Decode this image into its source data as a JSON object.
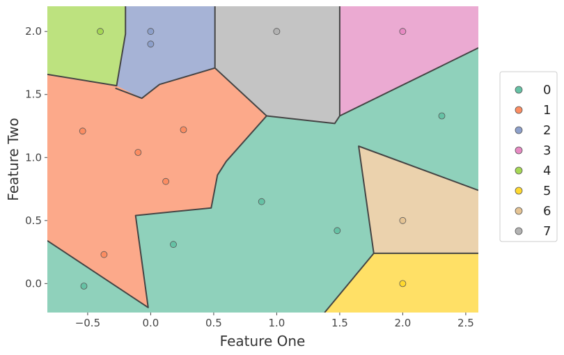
{
  "chart_data": {
    "type": "scatter",
    "subtype": "decision-boundary",
    "title": "",
    "xlabel": "Feature One",
    "ylabel": "Feature Two",
    "xlim": [
      -0.82,
      2.6
    ],
    "ylim": [
      -0.23,
      2.2
    ],
    "x_ticks": [
      -0.5,
      0.0,
      0.5,
      1.0,
      1.5,
      2.0,
      2.5
    ],
    "x_tick_labels": [
      "−0.5",
      "0.0",
      "0.5",
      "1.0",
      "1.5",
      "2.0",
      "2.5"
    ],
    "y_ticks": [
      0.0,
      0.5,
      1.0,
      1.5,
      2.0
    ],
    "y_tick_labels": [
      "0.0",
      "0.5",
      "1.0",
      "1.5",
      "2.0"
    ],
    "grid": false,
    "legend_position": "right",
    "class_colors": {
      "0": "#66c2a5",
      "1": "#fc8d62",
      "2": "#8da0cb",
      "3": "#e78ac3",
      "4": "#a6d854",
      "5": "#ffd92f",
      "6": "#e5c494",
      "7": "#b3b3b3"
    },
    "region_colors": {
      "0": "#8fd1bb",
      "1": "#fca98a",
      "2": "#a6b3d6",
      "3": "#ebaad2",
      "4": "#bde27f",
      "5": "#ffe066",
      "6": "#ebd2ad",
      "7": "#c4c4c4"
    },
    "legend": [
      "0",
      "1",
      "2",
      "3",
      "4",
      "5",
      "6",
      "7"
    ],
    "points": [
      {
        "x": -0.53,
        "y": -0.02,
        "class": "0"
      },
      {
        "x": 0.18,
        "y": 0.31,
        "class": "0"
      },
      {
        "x": 0.88,
        "y": 0.65,
        "class": "0"
      },
      {
        "x": 1.48,
        "y": 0.42,
        "class": "0"
      },
      {
        "x": 2.31,
        "y": 1.33,
        "class": "0"
      },
      {
        "x": -0.54,
        "y": 1.21,
        "class": "1"
      },
      {
        "x": -0.1,
        "y": 1.04,
        "class": "1"
      },
      {
        "x": 0.26,
        "y": 1.22,
        "class": "1"
      },
      {
        "x": 0.12,
        "y": 0.81,
        "class": "1"
      },
      {
        "x": -0.37,
        "y": 0.23,
        "class": "1"
      },
      {
        "x": 0.0,
        "y": 2.0,
        "class": "2"
      },
      {
        "x": 0.0,
        "y": 1.9,
        "class": "2"
      },
      {
        "x": 2.0,
        "y": 2.0,
        "class": "3"
      },
      {
        "x": -0.4,
        "y": 2.0,
        "class": "4"
      },
      {
        "x": 2.0,
        "y": 0.0,
        "class": "5"
      },
      {
        "x": 2.0,
        "y": 0.5,
        "class": "6"
      },
      {
        "x": 1.0,
        "y": 2.0,
        "class": "7"
      }
    ],
    "regions": [
      {
        "class": "0",
        "polygon": [
          [
            -0.82,
            -0.23
          ],
          [
            2.6,
            -0.23
          ],
          [
            2.6,
            2.2
          ],
          [
            -0.82,
            2.2
          ]
        ]
      },
      {
        "class": "4",
        "polygon": [
          [
            -0.82,
            2.2
          ],
          [
            -0.2,
            2.2
          ],
          [
            -0.2,
            1.98
          ],
          [
            -0.27,
            1.57
          ],
          [
            -0.82,
            1.66
          ]
        ]
      },
      {
        "class": "2",
        "polygon": [
          [
            -0.2,
            2.2
          ],
          [
            0.51,
            2.2
          ],
          [
            0.51,
            1.71
          ],
          [
            0.07,
            1.58
          ],
          [
            -0.07,
            1.47
          ],
          [
            -0.28,
            1.54
          ],
          [
            -0.2,
            1.98
          ]
        ]
      },
      {
        "class": "7",
        "polygon": [
          [
            0.51,
            2.2
          ],
          [
            1.5,
            2.2
          ],
          [
            1.5,
            1.33
          ],
          [
            1.46,
            1.27
          ],
          [
            0.92,
            1.33
          ],
          [
            0.51,
            1.71
          ]
        ]
      },
      {
        "class": "3",
        "polygon": [
          [
            1.5,
            2.2
          ],
          [
            2.6,
            2.2
          ],
          [
            2.6,
            1.87
          ],
          [
            1.5,
            1.33
          ]
        ]
      },
      {
        "class": "1",
        "polygon": [
          [
            -0.82,
            1.66
          ],
          [
            -0.27,
            1.57
          ],
          [
            -0.07,
            1.47
          ],
          [
            0.07,
            1.58
          ],
          [
            0.51,
            1.71
          ],
          [
            0.92,
            1.33
          ],
          [
            0.6,
            0.97
          ],
          [
            0.53,
            0.86
          ],
          [
            0.48,
            0.6
          ],
          [
            -0.12,
            0.54
          ],
          [
            -0.02,
            -0.19
          ],
          [
            -0.82,
            0.34
          ]
        ]
      },
      {
        "class": "6",
        "polygon": [
          [
            1.65,
            1.09
          ],
          [
            2.6,
            0.74
          ],
          [
            2.6,
            0.24
          ],
          [
            1.77,
            0.24
          ]
        ]
      },
      {
        "class": "5",
        "polygon": [
          [
            1.77,
            0.24
          ],
          [
            2.6,
            0.24
          ],
          [
            2.6,
            -0.23
          ],
          [
            1.38,
            -0.23
          ]
        ]
      }
    ],
    "boundaries": [
      [
        [
          -0.2,
          2.2
        ],
        [
          -0.2,
          1.98
        ],
        [
          -0.27,
          1.57
        ],
        [
          -0.82,
          1.66
        ]
      ],
      [
        [
          0.51,
          2.2
        ],
        [
          0.51,
          1.71
        ],
        [
          0.92,
          1.33
        ],
        [
          0.6,
          0.97
        ],
        [
          0.53,
          0.86
        ],
        [
          0.48,
          0.6
        ],
        [
          -0.12,
          0.54
        ],
        [
          -0.02,
          -0.19
        ],
        [
          -0.82,
          0.34
        ]
      ],
      [
        [
          -0.28,
          1.55
        ],
        [
          -0.07,
          1.47
        ],
        [
          0.07,
          1.58
        ],
        [
          0.51,
          1.71
        ]
      ],
      [
        [
          0.92,
          1.33
        ],
        [
          1.46,
          1.27
        ],
        [
          1.5,
          1.33
        ],
        [
          1.5,
          2.2
        ]
      ],
      [
        [
          1.5,
          1.33
        ],
        [
          2.6,
          1.87
        ]
      ],
      [
        [
          2.6,
          0.74
        ],
        [
          1.65,
          1.09
        ],
        [
          1.77,
          0.24
        ],
        [
          2.6,
          0.24
        ]
      ],
      [
        [
          1.77,
          0.24
        ],
        [
          1.38,
          -0.23
        ]
      ]
    ]
  }
}
